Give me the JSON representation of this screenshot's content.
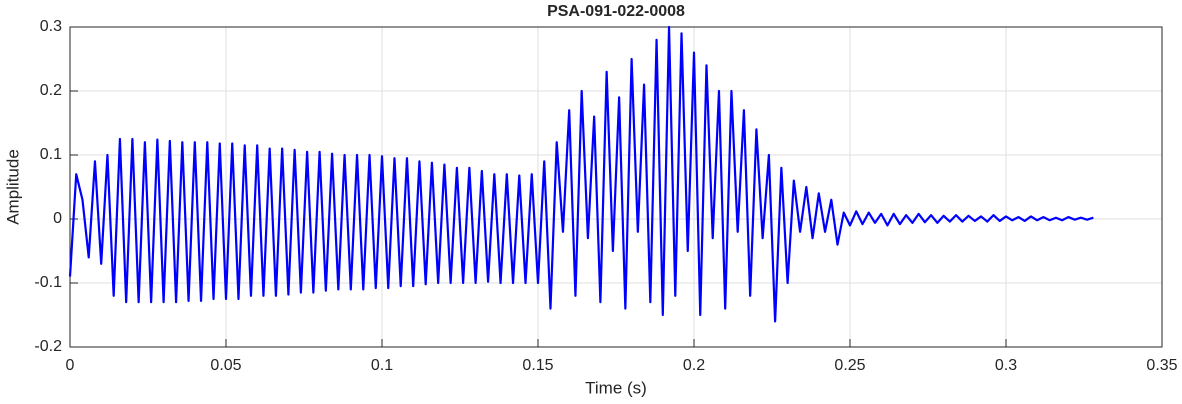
{
  "chart_data": {
    "type": "line",
    "title": "PSA-091-022-0008",
    "x_label": "Time (s)",
    "y_label": "Amplitude",
    "color": "#0000ff",
    "grid": true,
    "xlim": [
      0,
      0.35
    ],
    "xticks": [
      0,
      0.05,
      0.1,
      0.15,
      0.2,
      0.25,
      0.3,
      0.35
    ],
    "ylim": [
      -0.2,
      0.3
    ],
    "yticks": [
      -0.2,
      -0.1,
      0,
      0.1,
      0.2,
      0.3
    ],
    "x": [
      0,
      0.002,
      0.004,
      0.006,
      0.008,
      0.01,
      0.012,
      0.014,
      0.016,
      0.018,
      0.02,
      0.022,
      0.024,
      0.026,
      0.028,
      0.03,
      0.032,
      0.034,
      0.036,
      0.038,
      0.04,
      0.042,
      0.044,
      0.046,
      0.048,
      0.05,
      0.052,
      0.054,
      0.056,
      0.058,
      0.06,
      0.062,
      0.064,
      0.066,
      0.068,
      0.07,
      0.072,
      0.074,
      0.076,
      0.078,
      0.08,
      0.082,
      0.084,
      0.086,
      0.088,
      0.09,
      0.092,
      0.094,
      0.096,
      0.098,
      0.1,
      0.102,
      0.104,
      0.106,
      0.108,
      0.11,
      0.112,
      0.114,
      0.116,
      0.118,
      0.12,
      0.122,
      0.124,
      0.126,
      0.128,
      0.13,
      0.132,
      0.134,
      0.136,
      0.138,
      0.14,
      0.142,
      0.144,
      0.146,
      0.148,
      0.15,
      0.152,
      0.154,
      0.156,
      0.158,
      0.16,
      0.162,
      0.164,
      0.166,
      0.168,
      0.17,
      0.172,
      0.174,
      0.176,
      0.178,
      0.18,
      0.182,
      0.184,
      0.186,
      0.188,
      0.19,
      0.192,
      0.194,
      0.196,
      0.198,
      0.2,
      0.202,
      0.204,
      0.206,
      0.208,
      0.21,
      0.212,
      0.214,
      0.216,
      0.218,
      0.22,
      0.222,
      0.224,
      0.226,
      0.228,
      0.23,
      0.232,
      0.234,
      0.236,
      0.238,
      0.24,
      0.242,
      0.244,
      0.246,
      0.248,
      0.25,
      0.252,
      0.254,
      0.256,
      0.258,
      0.26,
      0.262,
      0.264,
      0.266,
      0.268,
      0.27,
      0.272,
      0.274,
      0.276,
      0.278,
      0.28,
      0.282,
      0.284,
      0.286,
      0.288,
      0.29,
      0.292,
      0.294,
      0.296,
      0.298,
      0.3,
      0.302,
      0.304,
      0.306,
      0.308,
      0.31,
      0.312,
      0.314,
      0.316,
      0.318,
      0.32,
      0.322,
      0.324,
      0.326,
      0.328
    ],
    "values": [
      -0.09,
      0.07,
      0.03,
      -0.06,
      0.09,
      -0.07,
      0.1,
      -0.12,
      0.125,
      -0.13,
      0.125,
      -0.13,
      0.12,
      -0.13,
      0.124,
      -0.13,
      0.122,
      -0.13,
      0.12,
      -0.128,
      0.12,
      -0.128,
      0.12,
      -0.125,
      0.118,
      -0.125,
      0.118,
      -0.125,
      0.115,
      -0.12,
      0.115,
      -0.12,
      0.11,
      -0.12,
      0.11,
      -0.118,
      0.108,
      -0.115,
      0.105,
      -0.115,
      0.105,
      -0.112,
      0.102,
      -0.11,
      0.1,
      -0.11,
      0.1,
      -0.11,
      0.1,
      -0.108,
      0.098,
      -0.108,
      0.095,
      -0.105,
      0.095,
      -0.105,
      0.09,
      -0.102,
      0.088,
      -0.1,
      0.085,
      -0.1,
      0.08,
      -0.1,
      0.08,
      -0.1,
      0.075,
      -0.098,
      0.07,
      -0.1,
      0.07,
      -0.1,
      0.068,
      -0.1,
      0.07,
      -0.1,
      0.09,
      -0.14,
      0.12,
      -0.02,
      0.17,
      -0.12,
      0.2,
      -0.03,
      0.16,
      -0.13,
      0.23,
      -0.05,
      0.19,
      -0.14,
      0.25,
      -0.02,
      0.21,
      -0.13,
      0.28,
      -0.15,
      0.3,
      -0.12,
      0.29,
      -0.05,
      0.26,
      -0.15,
      0.24,
      -0.03,
      0.2,
      -0.14,
      0.2,
      -0.02,
      0.17,
      -0.12,
      0.14,
      -0.03,
      0.1,
      -0.16,
      0.08,
      -0.1,
      0.06,
      -0.02,
      0.05,
      -0.03,
      0.04,
      -0.02,
      0.03,
      -0.04,
      0.01,
      -0.01,
      0.012,
      -0.008,
      0.01,
      -0.006,
      0.008,
      -0.01,
      0.008,
      -0.008,
      0.006,
      -0.006,
      0.008,
      -0.005,
      0.006,
      -0.006,
      0.005,
      -0.004,
      0.006,
      -0.004,
      0.005,
      -0.003,
      0.004,
      -0.004,
      0.006,
      -0.003,
      0.004,
      -0.002,
      0.003,
      -0.003,
      0.004,
      -0.002,
      0.003,
      -0.002,
      0.002,
      -0.002,
      0.003,
      -0.001,
      0.002,
      -0.001,
      0.002
    ]
  }
}
